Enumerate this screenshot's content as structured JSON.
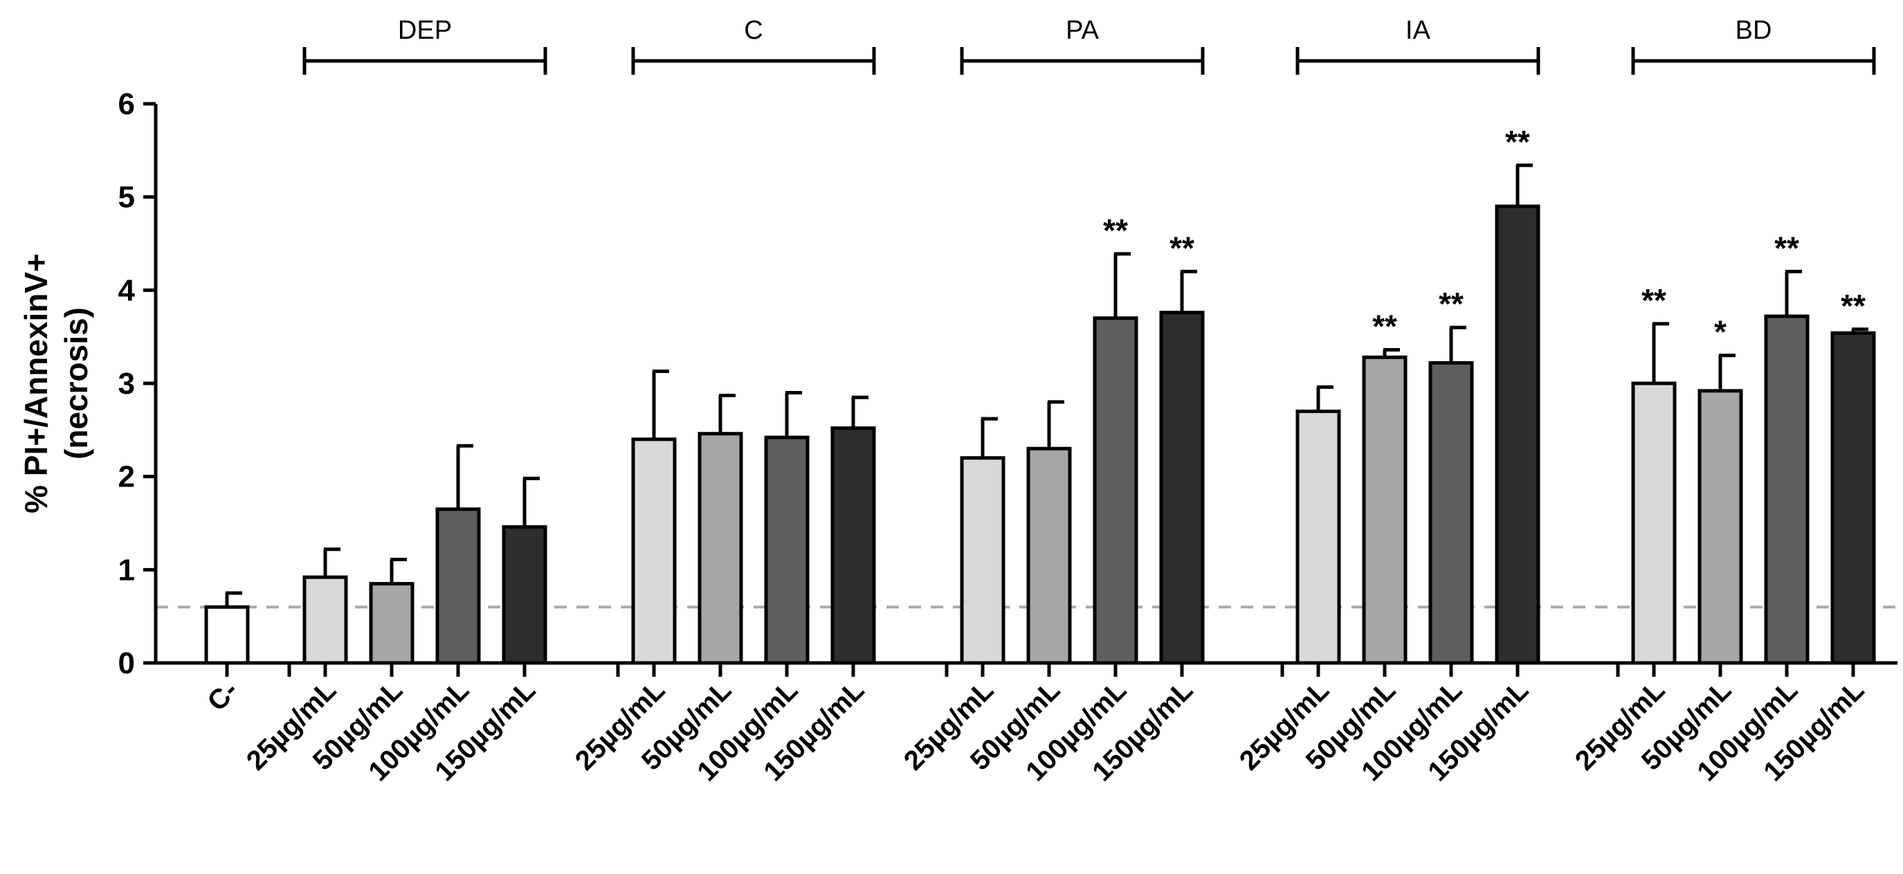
{
  "chart_data": {
    "type": "bar",
    "ylabel_lines": [
      "% PI+/AnnexinV+",
      "(necrosis)"
    ],
    "ylim": [
      0,
      6
    ],
    "yticks": [
      0,
      1,
      2,
      3,
      4,
      5,
      6
    ],
    "control": {
      "label": "C-",
      "value": 0.6,
      "error": 0.15,
      "color": "#ffffff"
    },
    "reference_line": {
      "value": 0.6,
      "style": "dashed",
      "color": "#aaaaaa"
    },
    "concentration_labels": [
      "25µg/mL",
      "50µg/mL",
      "100µg/mL",
      "150µg/mL"
    ],
    "concentration_colors": [
      "#d9d9d9",
      "#a6a6a6",
      "#5f5f5f",
      "#2e2e2e"
    ],
    "groups": [
      {
        "name": "DEP",
        "values": [
          0.92,
          0.85,
          1.65,
          1.46
        ],
        "errors": [
          0.3,
          0.26,
          0.68,
          0.52
        ],
        "significance": [
          "",
          "",
          "",
          ""
        ]
      },
      {
        "name": "C",
        "values": [
          2.4,
          2.46,
          2.42,
          2.52
        ],
        "errors": [
          0.73,
          0.41,
          0.48,
          0.33
        ],
        "significance": [
          "",
          "",
          "",
          ""
        ]
      },
      {
        "name": "PA",
        "values": [
          2.2,
          2.3,
          3.7,
          3.76
        ],
        "errors": [
          0.42,
          0.5,
          0.69,
          0.44
        ],
        "significance": [
          "",
          "",
          "**",
          "**"
        ]
      },
      {
        "name": "IA",
        "values": [
          2.7,
          3.28,
          3.22,
          4.9
        ],
        "errors": [
          0.26,
          0.08,
          0.38,
          0.44
        ],
        "significance": [
          "",
          "**",
          "**",
          "**"
        ]
      },
      {
        "name": "BD",
        "values": [
          3.0,
          2.92,
          3.72,
          3.54
        ],
        "errors": [
          0.64,
          0.38,
          0.48,
          0.04
        ],
        "significance": [
          "**",
          "*",
          "**",
          "**"
        ]
      }
    ]
  }
}
